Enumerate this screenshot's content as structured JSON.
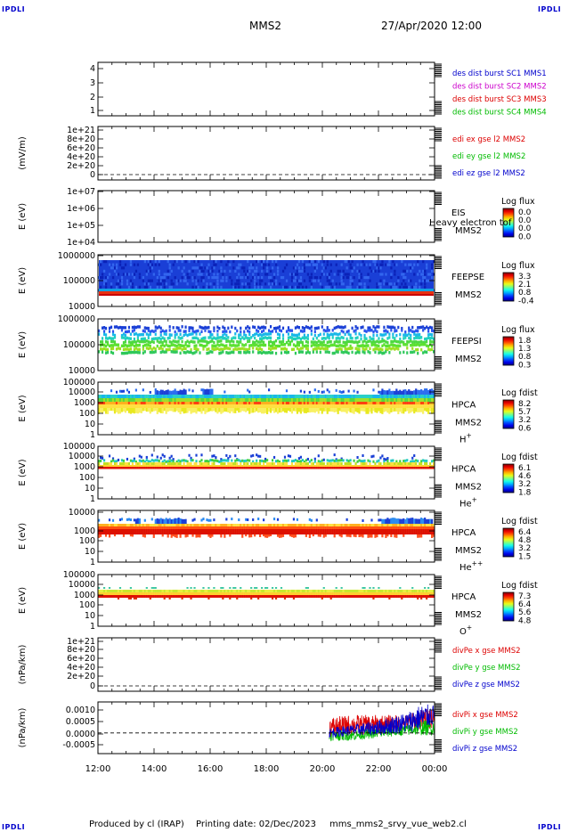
{
  "corner_labels": {
    "top_left": "IPDLI",
    "top_right": "IPDLI",
    "bottom_left": "IPDLI",
    "bottom_right": "IPDLI"
  },
  "header": {
    "spacecraft": "MMS2",
    "datetime": "27/Apr/2020 12:00"
  },
  "footer": {
    "produced_by": "Produced by cl (IRAP)",
    "printing_date": "Printing date: 02/Dec/2023",
    "filename": "mms_mms2_srvy_vue_web2.cl"
  },
  "chart_data": {
    "type": "heatmap",
    "x_ticks": [
      "12:00",
      "14:00",
      "16:00",
      "18:00",
      "20:00",
      "22:00",
      "00:00"
    ],
    "panels": [
      {
        "kind": "line",
        "ylabel": "",
        "yticks": [
          "1",
          "2",
          "3",
          "4"
        ],
        "legend": [
          {
            "text": "des dist burst SC1 MMS1",
            "color": "#0000cc"
          },
          {
            "text": "des dist burst SC2 MMS2",
            "color": "#cc00cc"
          },
          {
            "text": "des dist burst SC3 MMS3",
            "color": "#dd0000"
          },
          {
            "text": "des dist burst SC4 MMS4",
            "color": "#00bb00"
          }
        ]
      },
      {
        "kind": "line",
        "ylabel": "(mV/m)",
        "yticks": [
          "0",
          "2e+20",
          "4e+20",
          "6e+20",
          "8e+20",
          "1e+21"
        ],
        "zero_line": true,
        "legend": [
          {
            "text": "edi ex gse l2 MMS2",
            "color": "#dd0000"
          },
          {
            "text": "edi ey gse l2 MMS2",
            "color": "#00bb00"
          },
          {
            "text": "edi ez gse l2 MMS2",
            "color": "#0000cc"
          }
        ]
      },
      {
        "kind": "spectrogram",
        "ylabel": "E (eV)",
        "yticks": [
          "1e+04",
          "1e+05",
          "1e+06",
          "1e+07"
        ],
        "instrument": "EIS",
        "extra_label": "Heavy electron tof",
        "spacecraft": "MMS2",
        "species": "",
        "cbar_title": "Log flux",
        "cbar_ticks": [
          "0.0",
          "0.0",
          "0.0",
          "0.0"
        ],
        "pattern": "empty"
      },
      {
        "kind": "spectrogram",
        "ylabel": "E (eV)",
        "yticks": [
          "10000",
          "100000",
          "1000000"
        ],
        "instrument": "FEEPSE",
        "spacecraft": "MMS2",
        "species": "",
        "cbar_title": "Log flux",
        "cbar_ticks": [
          "3.3",
          "2.1",
          "0.8",
          "-0.4"
        ],
        "pattern": "feepse"
      },
      {
        "kind": "spectrogram",
        "ylabel": "E (eV)",
        "yticks": [
          "10000",
          "100000",
          "1000000"
        ],
        "instrument": "FEEPSI",
        "spacecraft": "MMS2",
        "species": "",
        "cbar_title": "Log flux",
        "cbar_ticks": [
          "1.8",
          "1.3",
          "0.8",
          "0.3"
        ],
        "pattern": "feepsi"
      },
      {
        "kind": "spectrogram",
        "ylabel": "E (eV)",
        "yticks": [
          "1",
          "10",
          "100",
          "1000",
          "10000",
          "100000"
        ],
        "instrument": "HPCA",
        "spacecraft": "MMS2",
        "species": "H",
        "species_sup": "+",
        "cbar_title": "Log fdist",
        "cbar_ticks": [
          "8.2",
          "5.7",
          "3.2",
          "0.6"
        ],
        "pattern": "hplus"
      },
      {
        "kind": "spectrogram",
        "ylabel": "E (eV)",
        "yticks": [
          "1",
          "10",
          "100",
          "1000",
          "10000",
          "100000"
        ],
        "instrument": "HPCA",
        "spacecraft": "MMS2",
        "species": "He",
        "species_sup": "+",
        "cbar_title": "Log fdist",
        "cbar_ticks": [
          "6.1",
          "4.6",
          "3.2",
          "1.8"
        ],
        "pattern": "heplus"
      },
      {
        "kind": "spectrogram",
        "ylabel": "E (eV)",
        "yticks": [
          "1",
          "10",
          "100",
          "1000",
          "10000"
        ],
        "instrument": "HPCA",
        "spacecraft": "MMS2",
        "species": "He",
        "species_sup": "++",
        "cbar_title": "Log fdist",
        "cbar_ticks": [
          "6.4",
          "4.8",
          "3.2",
          "1.5"
        ],
        "pattern": "hepp"
      },
      {
        "kind": "spectrogram",
        "ylabel": "E (eV)",
        "yticks": [
          "1",
          "10",
          "100",
          "1000",
          "10000",
          "100000"
        ],
        "instrument": "HPCA",
        "spacecraft": "MMS2",
        "species": "O",
        "species_sup": "+",
        "cbar_title": "Log fdist",
        "cbar_ticks": [
          "7.3",
          "6.4",
          "5.6",
          "4.8"
        ],
        "pattern": "oplus"
      },
      {
        "kind": "line",
        "ylabel": "(nPa/km)",
        "yticks": [
          "0",
          "2e+20",
          "4e+20",
          "6e+20",
          "8e+20",
          "1e+21"
        ],
        "zero_line": true,
        "legend": [
          {
            "text": "divPe x gse MMS2",
            "color": "#dd0000"
          },
          {
            "text": "divPe y gse MMS2",
            "color": "#00bb00"
          },
          {
            "text": "divPe z gse MMS2",
            "color": "#0000cc"
          }
        ]
      },
      {
        "kind": "line",
        "ylabel": "(nPa/km)",
        "yticks": [
          "-0.0005",
          "0.0000",
          "0.0005",
          "0.0010"
        ],
        "zero_line": true,
        "ylim": [
          -0.0008,
          0.0012
        ],
        "series": [
          {
            "name": "divPi x gse MMS2",
            "color": "#dd0000",
            "t": [
              20.25,
              21,
              22,
              23,
              23.5,
              24
            ],
            "mean": [
              0.0002,
              0.0003,
              0.0003,
              0.0004,
              0.0005,
              0.0006
            ],
            "spread": [
              0.0004,
              0.0004,
              0.0004,
              0.0003,
              0.0004,
              0.0004
            ]
          },
          {
            "name": "divPi y gse MMS2",
            "color": "#00bb00",
            "t": [
              20.25,
              21,
              22,
              23,
              23.5,
              24
            ],
            "mean": [
              -0.0001,
              -0.0001,
              0.0,
              0.0001,
              0.0002,
              0.0002
            ],
            "spread": [
              0.0002,
              0.0002,
              0.0002,
              0.0002,
              0.0003,
              0.0003
            ]
          },
          {
            "name": "divPi z gse MMS2",
            "color": "#0000cc",
            "t": [
              20.25,
              21,
              22,
              23,
              23.5,
              24
            ],
            "mean": [
              0.0,
              0.0001,
              0.0002,
              0.0004,
              0.0006,
              0.0007
            ],
            "spread": [
              0.0002,
              0.0002,
              0.0003,
              0.0004,
              0.0005,
              0.0004
            ]
          }
        ],
        "legend": [
          {
            "text": "divPi x gse MMS2",
            "color": "#dd0000"
          },
          {
            "text": "divPi y gse MMS2",
            "color": "#00bb00"
          },
          {
            "text": "divPi z gse MMS2",
            "color": "#0000cc"
          }
        ]
      }
    ]
  }
}
